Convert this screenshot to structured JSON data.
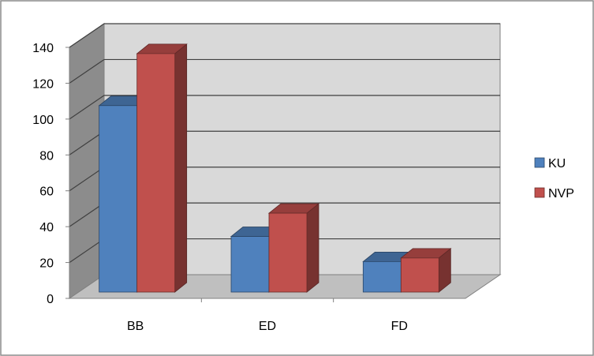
{
  "chart_data": {
    "type": "bar",
    "title": "",
    "xlabel": "",
    "ylabel": "",
    "categories": [
      "BB",
      "ED",
      "FD"
    ],
    "series": [
      {
        "name": "KU",
        "values": [
          104,
          31,
          17
        ],
        "color": "#4f81bd"
      },
      {
        "name": "NVP",
        "values": [
          133,
          44,
          19
        ],
        "color": "#c0504d"
      }
    ],
    "ylim": [
      0,
      140
    ],
    "yticks": [
      0,
      20,
      40,
      60,
      80,
      100,
      120,
      140
    ],
    "grid": true,
    "legend": "right",
    "style": "3d-clustered-column"
  }
}
